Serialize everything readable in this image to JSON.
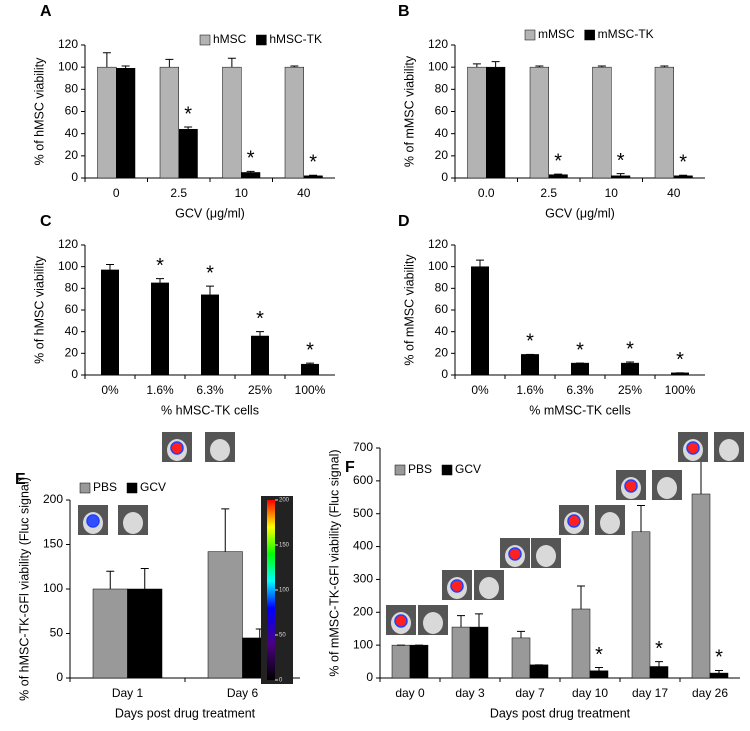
{
  "chart_data": [
    {
      "type": "bar",
      "title": "A",
      "categories": [
        "0",
        "2.5",
        "10",
        "40"
      ],
      "series": [
        {
          "name": "hMSC",
          "color": "#b3b3b3",
          "values": [
            100,
            100,
            100,
            100
          ],
          "errors": [
            13,
            7,
            8,
            1
          ],
          "significance": [
            null,
            null,
            null,
            null
          ]
        },
        {
          "name": "hMSC-TK",
          "color": "#000000",
          "values": [
            99,
            44,
            5,
            2
          ],
          "errors": [
            2,
            2,
            1,
            0.5
          ],
          "significance": [
            null,
            "*",
            "*",
            "*"
          ]
        }
      ],
      "ylabel": "% of hMSC viability",
      "xlabel": "GCV (μg/ml)",
      "ylim": [
        0,
        120
      ],
      "yticks": [
        0,
        20,
        40,
        60,
        80,
        100,
        120
      ],
      "legend": "top"
    },
    {
      "type": "bar",
      "title": "B",
      "categories": [
        "0.0",
        "2.5",
        "10",
        "40"
      ],
      "series": [
        {
          "name": "mMSC",
          "color": "#b3b3b3",
          "values": [
            100,
            100,
            100,
            100
          ],
          "errors": [
            3,
            1,
            1,
            1
          ],
          "significance": [
            null,
            null,
            null,
            null
          ]
        },
        {
          "name": "mMSC-TK",
          "color": "#000000",
          "values": [
            100,
            3,
            2,
            2
          ],
          "errors": [
            5,
            0.5,
            2,
            0.5
          ],
          "significance": [
            null,
            "*",
            "*",
            "*"
          ]
        }
      ],
      "ylabel": "% of mMSC viability",
      "xlabel": "GCV (μg/ml)",
      "ylim": [
        0,
        120
      ],
      "yticks": [
        0,
        20,
        40,
        60,
        80,
        100,
        120
      ],
      "legend": "top"
    },
    {
      "type": "bar",
      "title": "C",
      "categories": [
        "0%",
        "1.6%",
        "6.3%",
        "25%",
        "100%"
      ],
      "series": [
        {
          "color": "#000000",
          "values": [
            97,
            85,
            74,
            36,
            10
          ],
          "errors": [
            5,
            4,
            8,
            4,
            1
          ],
          "significance": [
            null,
            "*",
            "*",
            "*",
            "*"
          ]
        }
      ],
      "ylabel": "% of hMSC viability",
      "xlabel": "%  hMSC-TK cells",
      "ylim": [
        0,
        120
      ],
      "yticks": [
        0,
        20,
        40,
        60,
        80,
        100,
        120
      ]
    },
    {
      "type": "bar",
      "title": "D",
      "categories": [
        "0%",
        "1.6%",
        "6.3%",
        "25%",
        "100%"
      ],
      "series": [
        {
          "color": "#000000",
          "values": [
            100,
            19,
            11,
            11,
            2
          ],
          "errors": [
            6,
            0,
            0,
            1,
            0
          ],
          "significance": [
            null,
            "*",
            "*",
            "*",
            "*"
          ]
        }
      ],
      "ylabel": "% of mMSC viability",
      "xlabel": "%  mMSC-TK cells",
      "ylim": [
        0,
        120
      ],
      "yticks": [
        0,
        20,
        40,
        60,
        80,
        100,
        120
      ]
    },
    {
      "type": "bar",
      "title": "E",
      "categories": [
        "Day 1",
        "Day 6"
      ],
      "series": [
        {
          "name": "PBS",
          "color": "#999999",
          "values": [
            100,
            142
          ],
          "errors": [
            20,
            48
          ],
          "significance": [
            null,
            null
          ]
        },
        {
          "name": "GCV",
          "color": "#000000",
          "values": [
            100,
            45
          ],
          "errors": [
            23,
            10
          ],
          "significance": [
            null,
            null
          ]
        }
      ],
      "ylabel": "% of hMSC-TK-GFl viability (Fluc signal)",
      "xlabel": "Days post drug treatment",
      "ylim": [
        0,
        200
      ],
      "yticks": [
        0,
        50,
        100,
        150,
        200
      ],
      "legend": "top-left",
      "colorbar_ticks": [
        0,
        50,
        100,
        150,
        200
      ]
    },
    {
      "type": "bar",
      "title": "F",
      "categories": [
        "day 0",
        "day 3",
        "day 7",
        "day 10",
        "day 17",
        "day 26"
      ],
      "series": [
        {
          "name": "PBS",
          "color": "#999999",
          "values": [
            100,
            155,
            122,
            210,
            445,
            560
          ],
          "errors": [
            0,
            35,
            20,
            70,
            80,
            140
          ],
          "significance": [
            null,
            null,
            null,
            null,
            null,
            null
          ]
        },
        {
          "name": "GCV",
          "color": "#000000",
          "values": [
            100,
            155,
            40,
            22,
            35,
            15
          ],
          "errors": [
            0,
            40,
            0,
            10,
            15,
            8
          ],
          "significance": [
            null,
            null,
            null,
            "*",
            "*",
            "*"
          ]
        }
      ],
      "ylabel": "% of mMSC-TK-GFl viability (Fluc signal)",
      "xlabel": "Days post drug treatment",
      "ylim": [
        0,
        700
      ],
      "yticks": [
        0,
        100,
        200,
        300,
        400,
        500,
        600,
        700
      ],
      "legend": "top-left"
    }
  ]
}
